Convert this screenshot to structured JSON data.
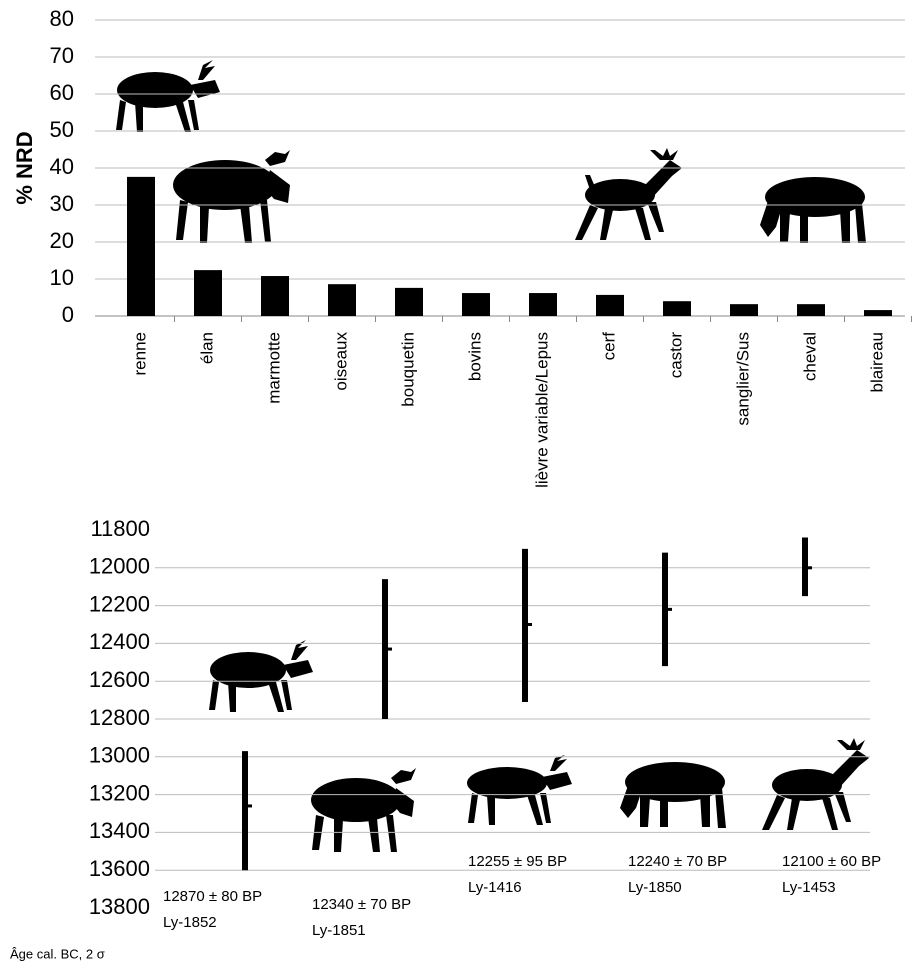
{
  "chart_data": [
    {
      "type": "bar",
      "y_label": "% NRD",
      "categories": [
        "renne",
        "élan",
        "marmotte",
        "oiseaux",
        "bouquetin",
        "bovins",
        "lièvre variable/Lepus",
        "cerf",
        "castor",
        "sanglier/Sus",
        "cheval",
        "blaireau"
      ],
      "values": [
        37.6,
        12.4,
        10.8,
        8.6,
        7.6,
        6.2,
        6.2,
        5.7,
        4,
        3.2,
        3.2,
        1.6
      ],
      "color": "#000000",
      "ylim": [
        0,
        80
      ],
      "yticks": [
        0,
        10,
        20,
        30,
        40,
        50,
        60,
        70,
        80
      ],
      "grid": true
    },
    {
      "type": "range",
      "footnote": "Âge cal. BC, 2 σ",
      "categories": [
        "Ly-1852",
        "Ly-1851",
        "Ly-1416",
        "Ly-1850",
        "Ly-1453"
      ],
      "labels": [
        "12870 ± 80 BP",
        "12340 ± 70 BP",
        "12255 ± 95 BP",
        "12240 ± 70 BP",
        "12100 ± 60 BP"
      ],
      "low": [
        12970,
        12060,
        11900,
        11920,
        11840
      ],
      "high": [
        13600,
        12800,
        12710,
        12520,
        12150
      ],
      "median": [
        13260,
        12430,
        12300,
        12220,
        12000
      ],
      "color": "#000000",
      "ylim": [
        11800,
        13800
      ],
      "yticks": [
        11800,
        12000,
        12200,
        12400,
        12600,
        12800,
        13000,
        13200,
        13400,
        13600,
        13800
      ],
      "y_inverted": true,
      "grid": true
    }
  ]
}
